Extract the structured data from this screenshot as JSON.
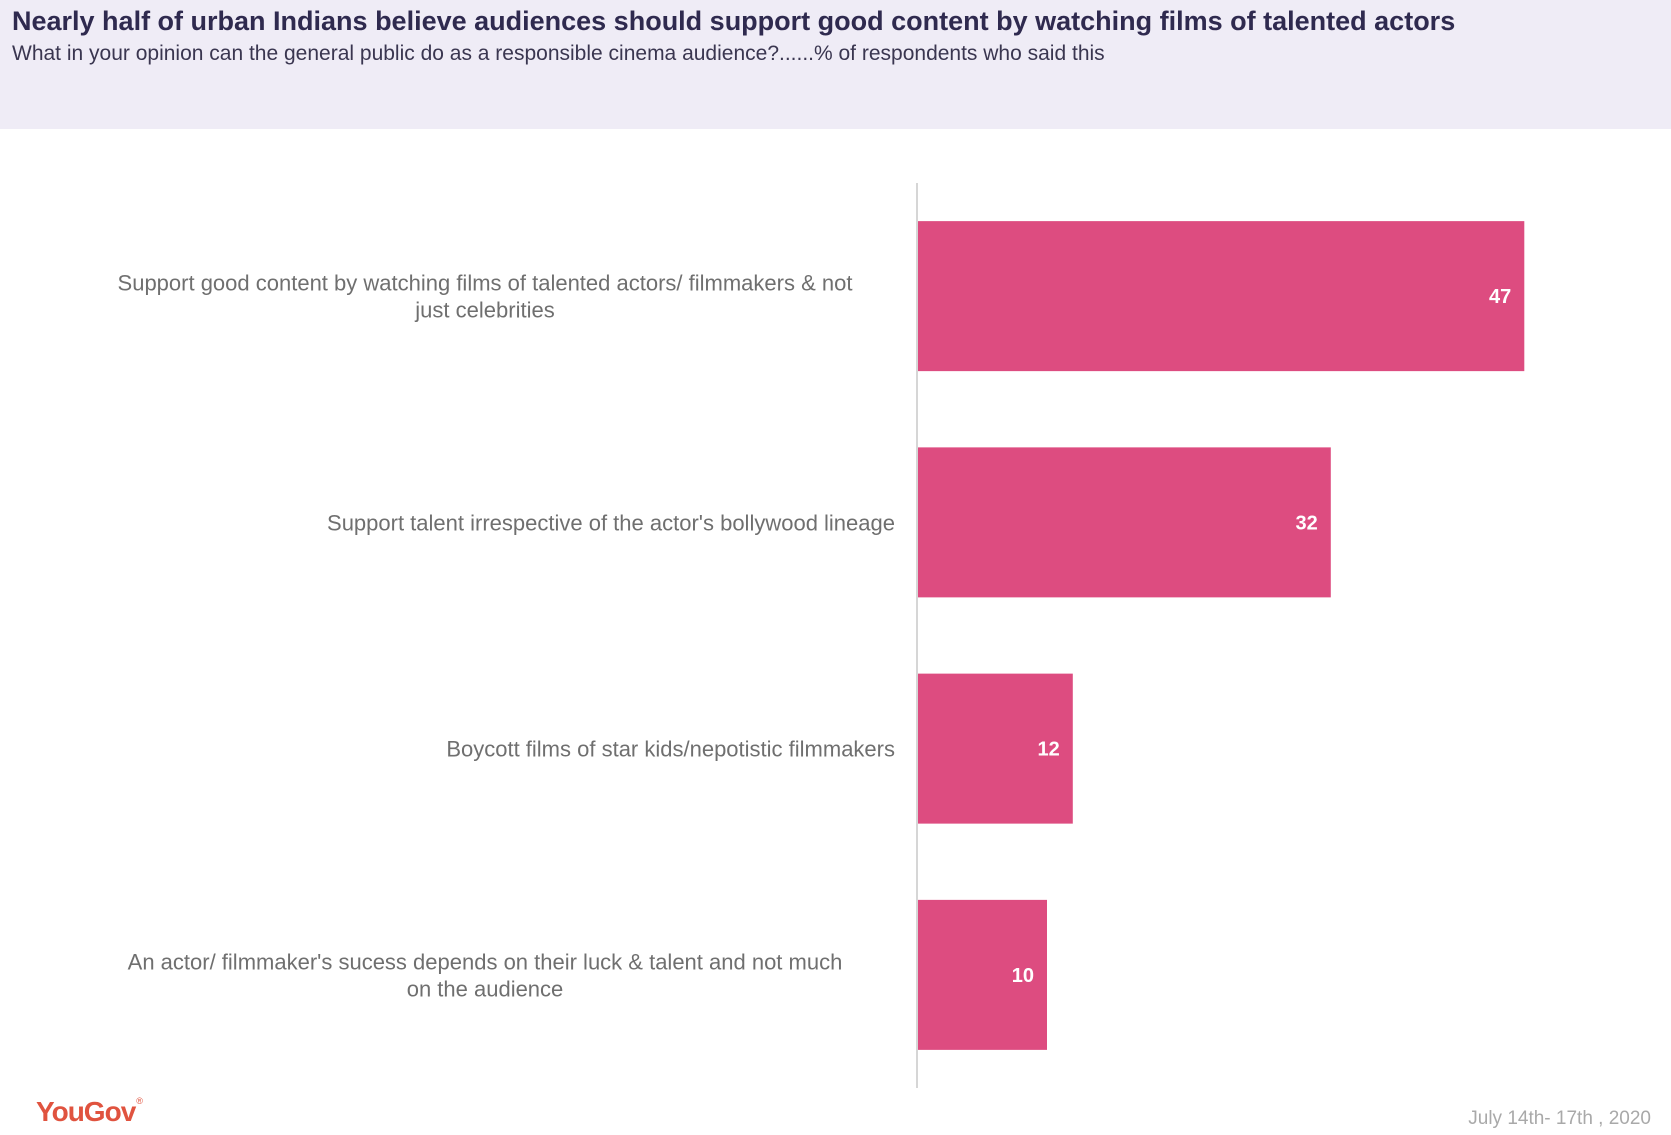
{
  "header": {
    "title": "Nearly half of urban Indians believe audiences should support good content by watching films of talented actors",
    "subtitle": "What in your opinion can the general public do as a responsible cinema audience?......% of respondents who said this"
  },
  "chart_data": {
    "type": "bar",
    "orientation": "horizontal",
    "title": "Nearly half of urban Indians believe audiences should support good content by watching films of talented actors",
    "subtitle": "What in your opinion can the general public do as a responsible cinema audience?......% of respondents who said this",
    "categories": [
      [
        "Support good content by watching films of talented actors/ filmmakers & not",
        "just celebrities"
      ],
      [
        "Support talent irrespective of the actor's bollywood lineage"
      ],
      [
        "Boycott films of star kids/nepotistic filmmakers"
      ],
      [
        "An actor/ filmmaker's sucess depends on their luck & talent and not much",
        "on the audience"
      ]
    ],
    "values": [
      47,
      32,
      12,
      10
    ],
    "xlim": [
      0,
      60
    ],
    "grid": false,
    "bar_color": "#dd4c80",
    "value_label_color": "#ffffff"
  },
  "branding": {
    "logo_text": "YouGov",
    "logo_mark": "®",
    "logo_color": "#e0533f"
  },
  "footer": {
    "date": "July 14th- 17th , 2020"
  }
}
